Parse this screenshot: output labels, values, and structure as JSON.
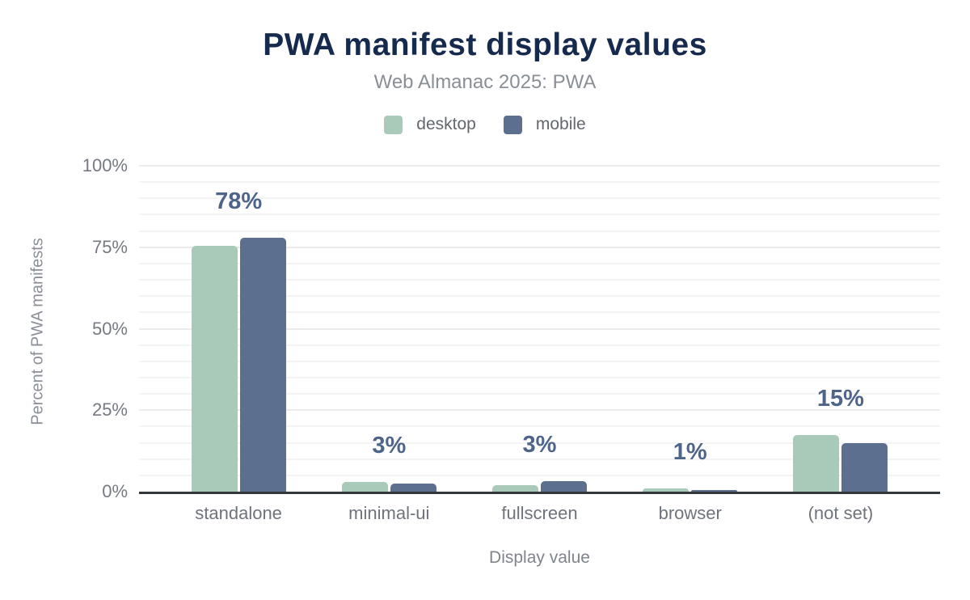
{
  "header": {
    "title": "PWA manifest display values",
    "subtitle": "Web Almanac 2025: PWA"
  },
  "chart_data": {
    "type": "bar",
    "title": "PWA manifest display values",
    "subtitle": "Web Almanac 2025: PWA",
    "categories": [
      "standalone",
      "minimal-ui",
      "fullscreen",
      "browser",
      "(not set)"
    ],
    "series": [
      {
        "name": "desktop",
        "color": "#a9cab9",
        "values": [
          75.5,
          3,
          2,
          1,
          17.3
        ]
      },
      {
        "name": "mobile",
        "color": "#5d6f8f",
        "values": [
          78,
          2.5,
          3.2,
          0.5,
          14.8
        ]
      }
    ],
    "data_labels": [
      "78%",
      "3%",
      "3%",
      "1%",
      "15%"
    ],
    "xlabel": "Display value",
    "ylabel": "Percent of PWA manifests",
    "ylim": [
      0,
      100
    ],
    "ytick_values": [
      0,
      25,
      50,
      75,
      100
    ],
    "ytick_labels": [
      "0%",
      "25%",
      "50%",
      "75%",
      "100%"
    ],
    "grid": "horizontal minor gridlines every 5%, majors every 25%",
    "legend_position": "top center"
  },
  "colors": {
    "title": "#152a4d",
    "subtitle": "#8a8f96",
    "data_label": "#4f6489",
    "axis_line": "#33363b",
    "tick_text": "#757a83",
    "gridline_minor": "#f4f4f5",
    "gridline_major": "#ebebed",
    "background": "#ffffff"
  }
}
